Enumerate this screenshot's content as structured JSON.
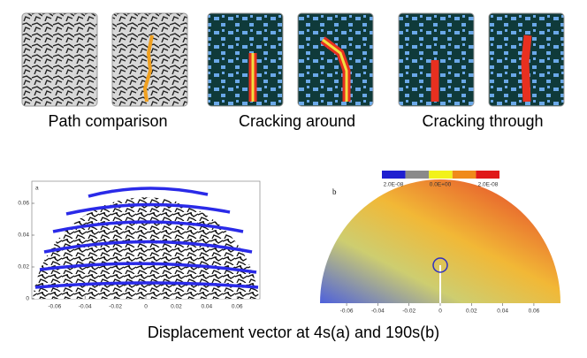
{
  "top_row": {
    "labels": [
      "Path comparison",
      "Cracking around",
      "Cracking through"
    ]
  },
  "plot_a": {
    "label": "a",
    "xlim": [
      -0.075,
      0.075
    ],
    "ylim": [
      0,
      0.07
    ],
    "xticks": [
      -0.06,
      -0.04,
      -0.02,
      0,
      0.02,
      0.04,
      0.06
    ],
    "yticks": [
      0,
      0.02,
      0.04,
      0.06
    ]
  },
  "plot_b": {
    "label": "b",
    "xlim": [
      -0.075,
      0.075
    ],
    "xticks": [
      -0.06,
      -0.04,
      -0.02,
      0,
      0.02,
      0.04,
      0.06
    ],
    "colorbar": {
      "labels": [
        "2.0E-08",
        "0.0E+00",
        "2.0E-08"
      ],
      "colors": [
        "#1f1fd0",
        "#8a8a8a",
        "#f2f21a",
        "#f08a1a",
        "#e01818"
      ]
    }
  },
  "caption": "Displacement vector at 4s(a) and 190s(b)"
}
